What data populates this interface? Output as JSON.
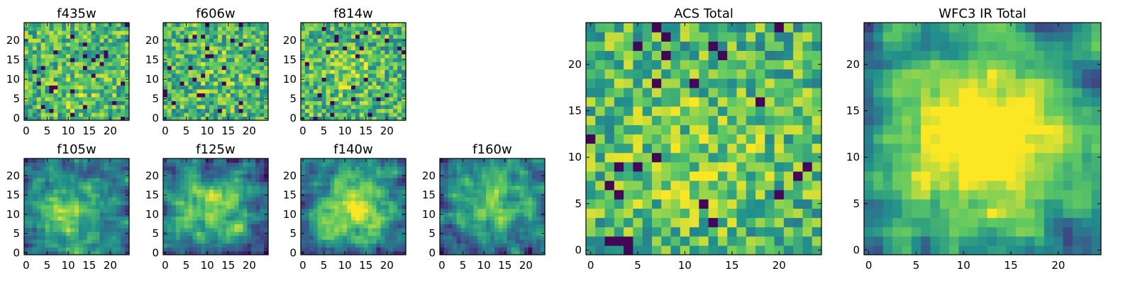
{
  "figure": {
    "colormap": "viridis",
    "colormap_stops": [
      "#440154",
      "#3b528b",
      "#21918c",
      "#5ec962",
      "#fde725"
    ]
  },
  "chart_data": [
    {
      "type": "heatmap",
      "title": "f435w",
      "grid_size": [
        25,
        25
      ],
      "xlim": [
        -0.5,
        24.5
      ],
      "ylim": [
        -0.5,
        24.5
      ],
      "xticks": [
        0,
        5,
        10,
        15,
        20
      ],
      "yticks": [
        0,
        5,
        10,
        15,
        20
      ],
      "texture": "noise",
      "bright_center": [
        12,
        6
      ],
      "bright_radius": 4,
      "bright_strength": 0.1,
      "seed": 11
    },
    {
      "type": "heatmap",
      "title": "f606w",
      "grid_size": [
        25,
        25
      ],
      "xlim": [
        -0.5,
        24.5
      ],
      "ylim": [
        -0.5,
        24.5
      ],
      "xticks": [
        0,
        5,
        10,
        15,
        20
      ],
      "yticks": [
        0,
        5,
        10,
        15,
        20
      ],
      "texture": "noise",
      "bright_center": [
        12,
        12
      ],
      "bright_radius": 5,
      "bright_strength": 0.08,
      "seed": 23
    },
    {
      "type": "heatmap",
      "title": "f814w",
      "grid_size": [
        25,
        25
      ],
      "xlim": [
        -0.5,
        24.5
      ],
      "ylim": [
        -0.5,
        24.5
      ],
      "xticks": [
        0,
        5,
        10,
        15,
        20
      ],
      "yticks": [
        0,
        5,
        10,
        15,
        20
      ],
      "texture": "noise",
      "bright_center": [
        11,
        12
      ],
      "bright_radius": 4,
      "bright_strength": 0.15,
      "seed": 37
    },
    {
      "type": "heatmap",
      "title": "f105w",
      "grid_size": [
        25,
        25
      ],
      "xlim": [
        -0.5,
        24.5
      ],
      "ylim": [
        -0.5,
        24.5
      ],
      "xticks": [
        0,
        5,
        10,
        15,
        20
      ],
      "yticks": [
        0,
        5,
        10,
        15,
        20
      ],
      "texture": "smooth",
      "bright_center": [
        10,
        10
      ],
      "bright_radius": 7,
      "bright_strength": 0.35,
      "seed": 41
    },
    {
      "type": "heatmap",
      "title": "f125w",
      "grid_size": [
        25,
        25
      ],
      "xlim": [
        -0.5,
        24.5
      ],
      "ylim": [
        -0.5,
        24.5
      ],
      "xticks": [
        0,
        5,
        10,
        15,
        20
      ],
      "yticks": [
        0,
        5,
        10,
        15,
        20
      ],
      "texture": "smooth",
      "bright_center": [
        12,
        12
      ],
      "bright_radius": 7,
      "bright_strength": 0.35,
      "seed": 53
    },
    {
      "type": "heatmap",
      "title": "f140w",
      "grid_size": [
        25,
        25
      ],
      "xlim": [
        -0.5,
        24.5
      ],
      "ylim": [
        -0.5,
        24.5
      ],
      "xticks": [
        0,
        5,
        10,
        15,
        20
      ],
      "yticks": [
        0,
        5,
        10,
        15,
        20
      ],
      "texture": "smooth",
      "bright_center": [
        12,
        12
      ],
      "bright_radius": 7,
      "bright_strength": 0.45,
      "seed": 67
    },
    {
      "type": "heatmap",
      "title": "f160w",
      "grid_size": [
        25,
        25
      ],
      "xlim": [
        -0.5,
        24.5
      ],
      "ylim": [
        -0.5,
        24.5
      ],
      "xticks": [
        0,
        5,
        10,
        15,
        20
      ],
      "yticks": [
        0,
        5,
        10,
        15,
        20
      ],
      "texture": "smooth",
      "bright_center": [
        12,
        13
      ],
      "bright_radius": 7,
      "bright_strength": 0.35,
      "seed": 79
    },
    {
      "type": "heatmap",
      "title": "ACS Total",
      "grid_size": [
        25,
        25
      ],
      "xlim": [
        -0.5,
        24.5
      ],
      "ylim": [
        -0.5,
        24.5
      ],
      "xticks": [
        0,
        5,
        10,
        15,
        20
      ],
      "yticks": [
        0,
        5,
        10,
        15,
        20
      ],
      "texture": "noise",
      "bright_center": [
        11,
        10
      ],
      "bright_radius": 6,
      "bright_strength": 0.12,
      "seed": 97
    },
    {
      "type": "heatmap",
      "title": "WFC3 IR Total",
      "grid_size": [
        25,
        25
      ],
      "xlim": [
        -0.5,
        24.5
      ],
      "ylim": [
        -0.5,
        24.5
      ],
      "xticks": [
        0,
        5,
        10,
        15,
        20
      ],
      "yticks": [
        0,
        5,
        10,
        15,
        20
      ],
      "texture": "smooth",
      "bright_center": [
        12,
        12
      ],
      "bright_radius": 8,
      "bright_strength": 0.6,
      "seed": 113
    }
  ]
}
